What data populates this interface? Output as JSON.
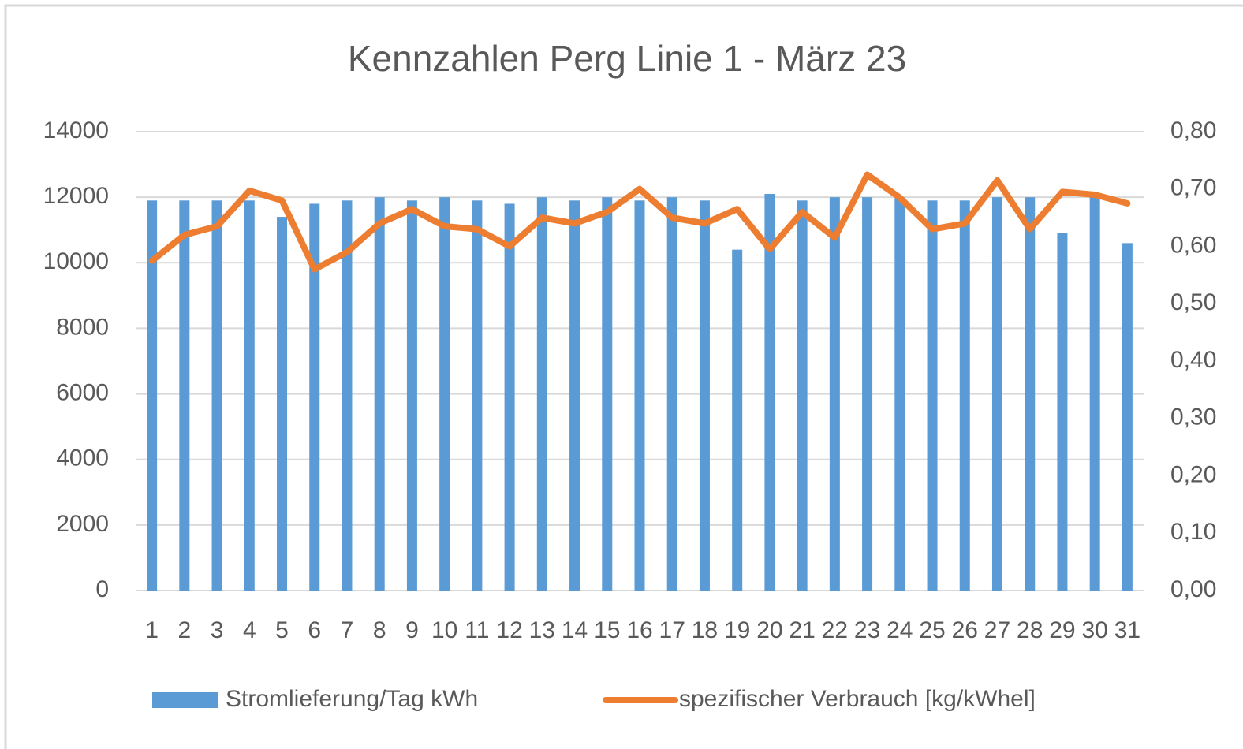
{
  "chart_data": {
    "type": "bar-line",
    "title": "Kennzahlen Perg Linie 1 - März 23",
    "categories": [
      "1",
      "2",
      "3",
      "4",
      "5",
      "6",
      "7",
      "8",
      "9",
      "10",
      "11",
      "12",
      "13",
      "14",
      "15",
      "16",
      "17",
      "18",
      "19",
      "20",
      "21",
      "22",
      "23",
      "24",
      "25",
      "26",
      "27",
      "28",
      "29",
      "30",
      "31"
    ],
    "series": [
      {
        "name": "Stromlieferung/Tag kWh",
        "type": "bar",
        "color": "#5b9bd5",
        "values": [
          11900,
          11900,
          11900,
          11900,
          11400,
          11800,
          11900,
          12000,
          11900,
          12000,
          11900,
          11800,
          12000,
          11900,
          12000,
          11900,
          12000,
          11900,
          10400,
          12100,
          11900,
          12000,
          12000,
          12000,
          11900,
          11900,
          12000,
          12000,
          10900,
          12000,
          10600
        ]
      },
      {
        "name": "spezifischer Verbrauch [kg/kWhel]",
        "type": "line",
        "axis": "y2",
        "color": "#ed7d31",
        "values": [
          0.575,
          0.62,
          0.635,
          0.697,
          0.68,
          0.56,
          0.59,
          0.64,
          0.665,
          0.635,
          0.63,
          0.6,
          0.65,
          0.64,
          0.66,
          0.7,
          0.65,
          0.64,
          0.665,
          0.595,
          0.66,
          0.615,
          0.725,
          0.685,
          0.63,
          0.64,
          0.715,
          0.63,
          0.695,
          0.69,
          0.675
        ]
      }
    ],
    "ylim": [
      0,
      14000
    ],
    "yticks": [
      0,
      2000,
      4000,
      6000,
      8000,
      10000,
      12000,
      14000
    ],
    "y2lim": [
      0,
      0.8
    ],
    "y2ticks": [
      {
        "value": 0,
        "label": "0,00"
      },
      {
        "value": 0.1,
        "label": "0,10"
      },
      {
        "value": 0.2,
        "label": "0,20"
      },
      {
        "value": 0.3,
        "label": "0,30"
      },
      {
        "value": 0.4,
        "label": "0,40"
      },
      {
        "value": 0.5,
        "label": "0,50"
      },
      {
        "value": 0.6,
        "label": "0,60"
      },
      {
        "value": 0.7,
        "label": "0,70"
      },
      {
        "value": 0.8,
        "label": "0,80"
      }
    ],
    "grid": true,
    "legend": "bottom"
  }
}
